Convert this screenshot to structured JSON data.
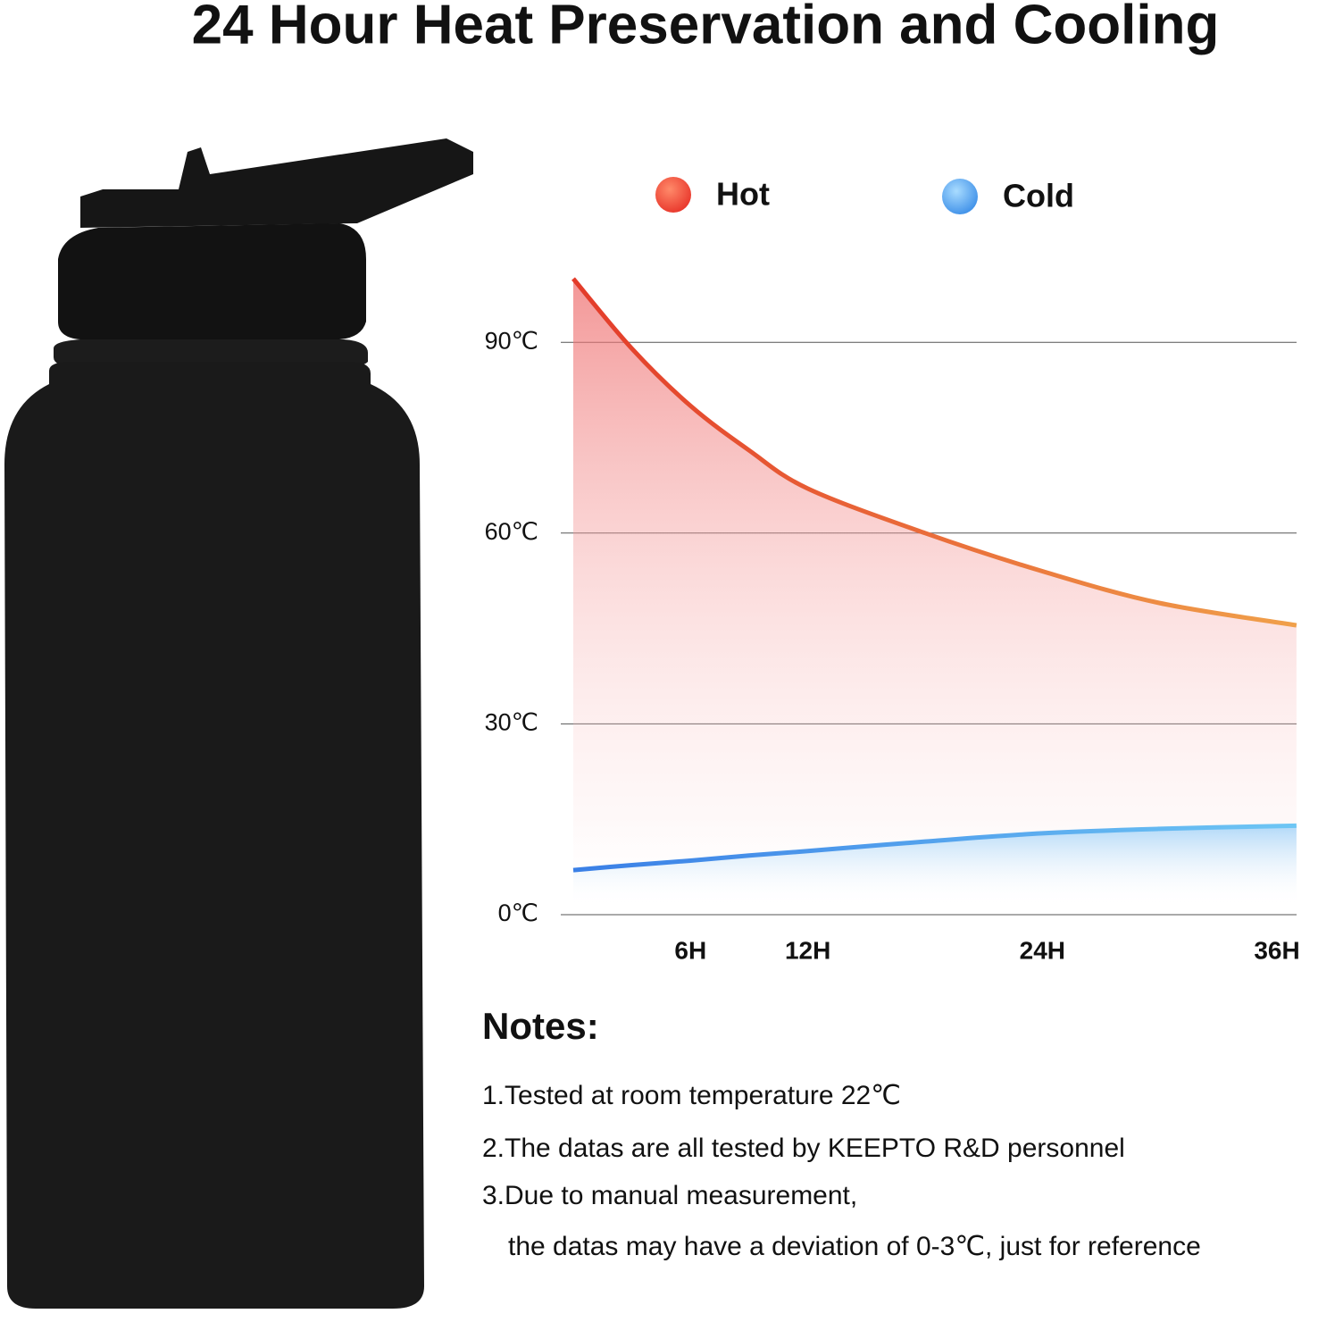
{
  "title": "24 Hour Heat Preservation and Cooling",
  "chart_data": {
    "type": "line",
    "x": [
      0,
      3,
      6,
      9,
      12,
      18,
      24,
      30,
      37
    ],
    "series": [
      {
        "name": "Hot",
        "color": "#e8452c",
        "values": [
          100,
          89,
          80,
          73,
          67,
          60,
          54,
          49,
          45.5
        ]
      },
      {
        "name": "Cold",
        "color": "#3d8fe8",
        "values": [
          7,
          7.8,
          8.5,
          9.3,
          10,
          11.5,
          12.8,
          13.5,
          14
        ]
      }
    ],
    "xlim": [
      0,
      37
    ],
    "xticks": [
      {
        "value": 6,
        "label": "6H"
      },
      {
        "value": 12,
        "label": "12H"
      },
      {
        "value": 24,
        "label": "24H"
      },
      {
        "value": 36,
        "label": "36H"
      }
    ],
    "ylim": [
      0,
      100
    ],
    "yticks": [
      {
        "value": 0,
        "label": "0℃"
      },
      {
        "value": 30,
        "label": "30℃"
      },
      {
        "value": 60,
        "label": "60℃"
      },
      {
        "value": 90,
        "label": "90℃"
      }
    ],
    "grid": true
  },
  "notes": {
    "heading": "Notes:",
    "items": [
      "1.Tested at room temperature 22℃",
      "2.The datas are all tested by KEEPTO R&D personnel",
      "3.Due to manual measurement,",
      "the datas may have a deviation of 0-3℃, just for reference"
    ]
  }
}
